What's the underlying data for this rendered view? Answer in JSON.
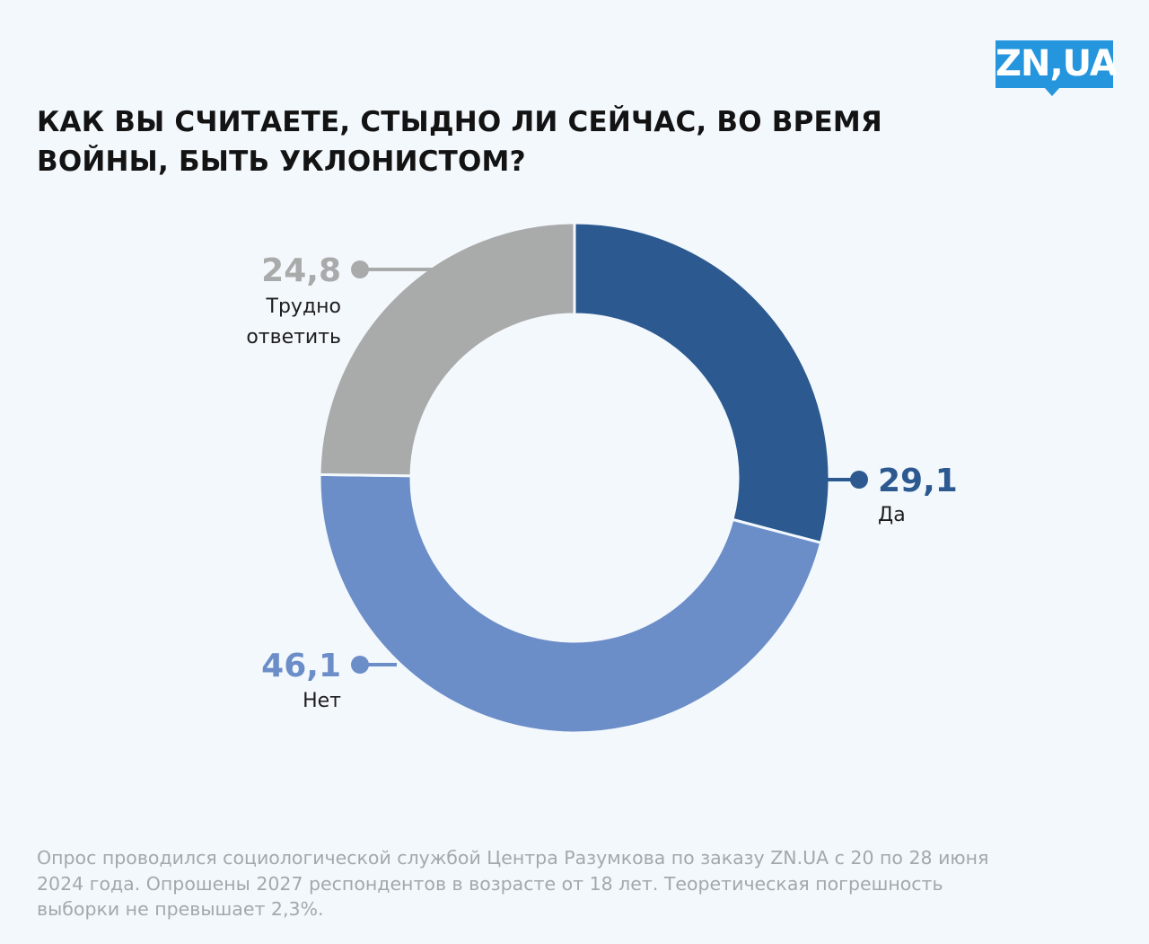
{
  "logo": {
    "text": "ZN,UA",
    "color": "#2596dd"
  },
  "title": "КАК ВЫ СЧИТАЕТЕ, СТЫДНО ЛИ СЕЙЧАС, ВО ВРЕМЯ ВОЙНЫ, БЫТЬ УКЛОНИСТОМ?",
  "chart_data": {
    "type": "pie",
    "donut": true,
    "legend": "none",
    "series": [
      {
        "label": "Да",
        "value": 29.1,
        "value_text": "29,1",
        "color": "#2b5990",
        "value_color": "#2b5990"
      },
      {
        "label": "Нет",
        "value": 46.1,
        "value_text": "46,1",
        "color": "#6b8dc8",
        "value_color": "#6b8dc8"
      },
      {
        "label": "Трудно ответить",
        "label_lines": [
          "Трудно",
          "ответить"
        ],
        "value": 24.8,
        "value_text": "24,8",
        "color": "#a9aaaa",
        "value_color": "#a9aaaa"
      }
    ]
  },
  "footnote": "Опрос проводился социологической службой Центра Разумкова по заказу ZN.UA с 20 по 28 июня 2024 года. Опрошены 2027 респондентов в возрасте от 18 лет. Теоретическая погрешность выборки не превышает 2,3%."
}
